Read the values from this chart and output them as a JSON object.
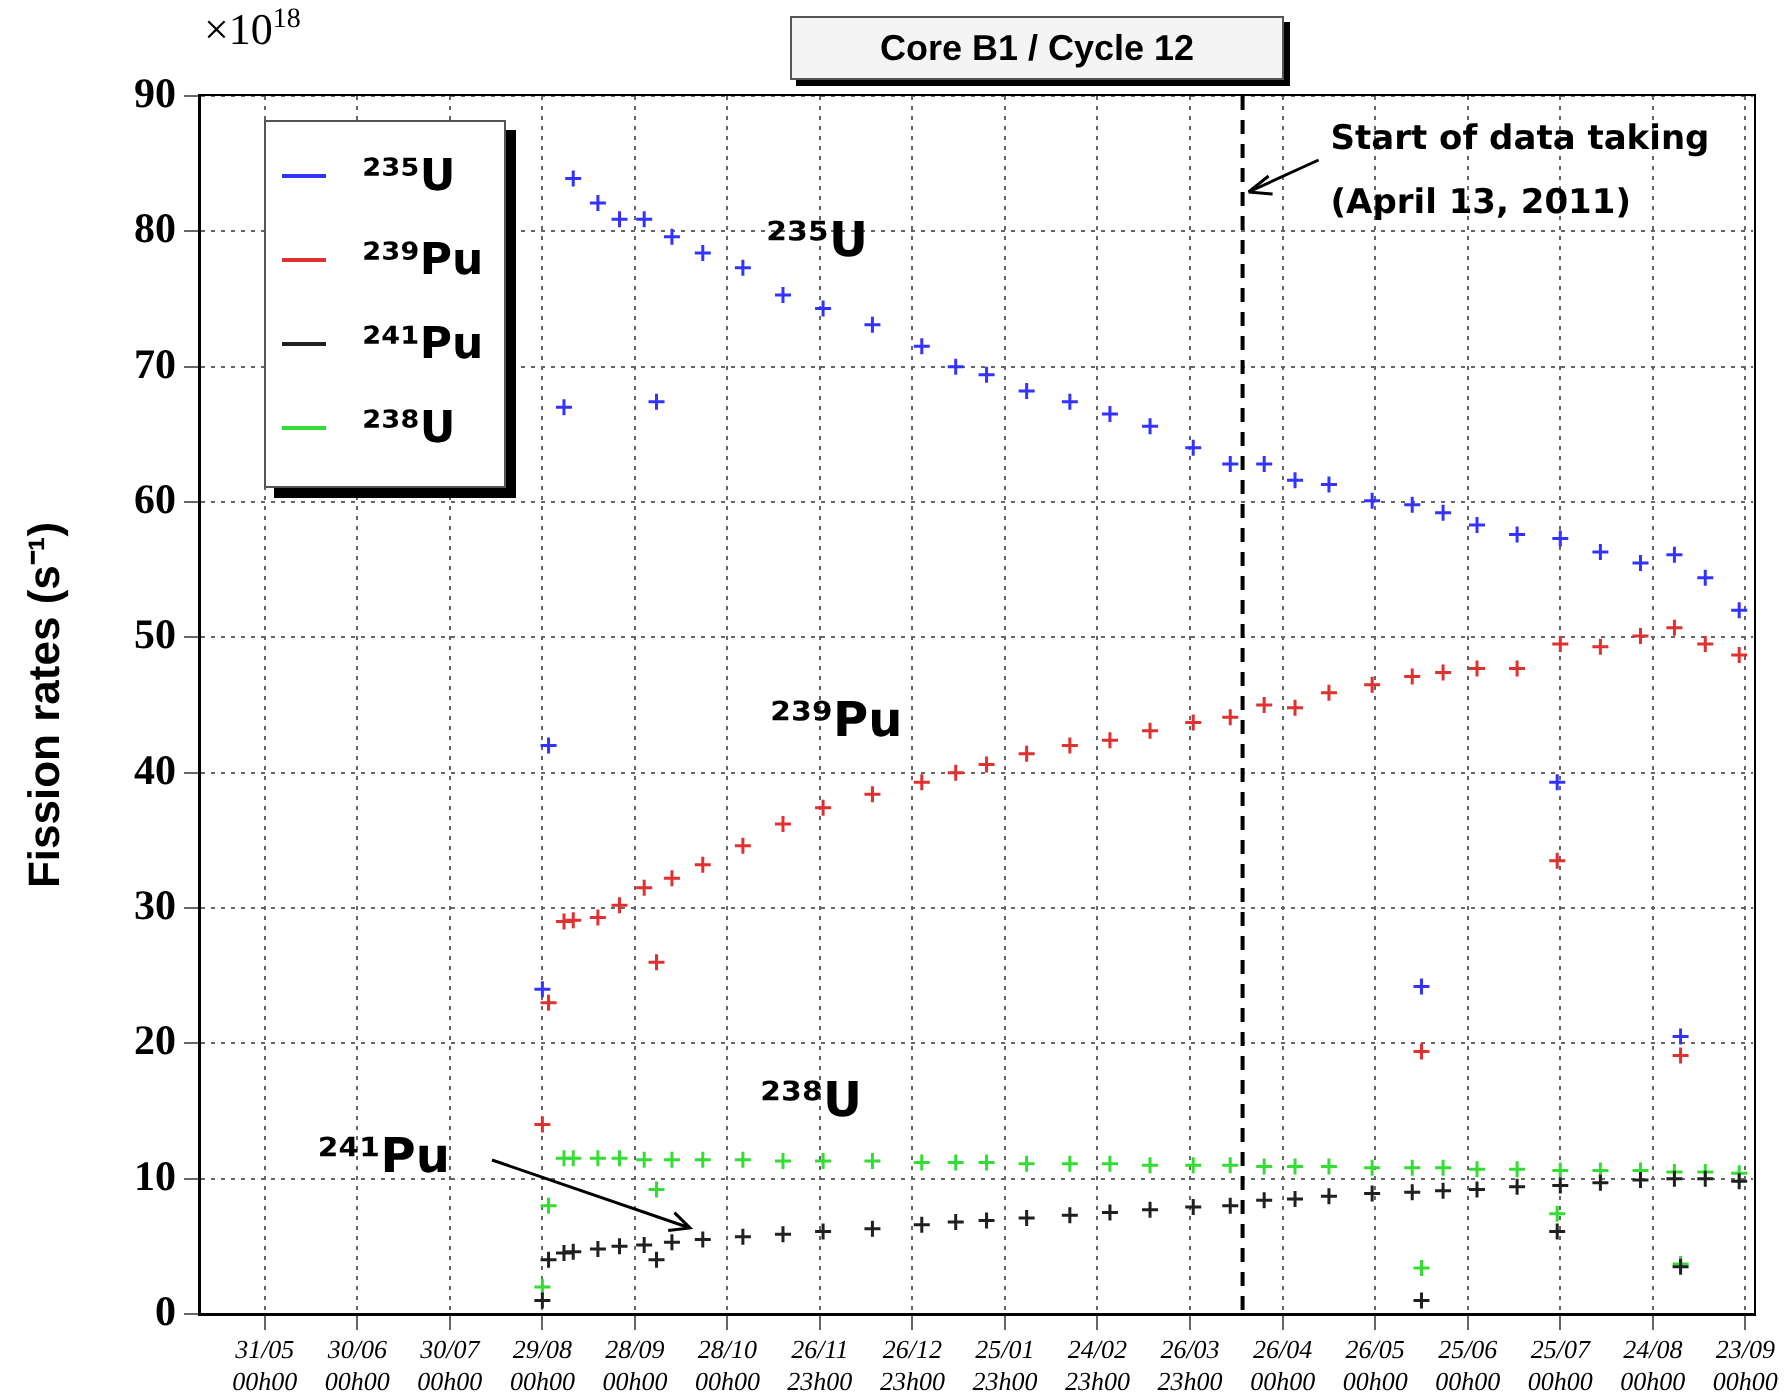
{
  "chart_data": {
    "type": "scatter",
    "title": "Core B1 / Cycle 12",
    "ylabel": "Fission rates (s⁻¹)",
    "annotations": [
      "×10$^{18}$",
      "²³⁵U",
      "²³⁹Pu",
      "²³⁸U",
      {
        "text": "²⁴¹Pu",
        "x": "2010-10-17",
        "y": 6
      }
    ],
    "x": [
      "2010-08-29",
      "2010-08-31",
      "2010-09-05",
      "2010-09-08",
      "2010-09-16",
      "2010-09-23",
      "2010-10-01",
      "2010-10-05",
      "2010-10-10",
      "2010-10-20",
      "2010-11-02",
      "2010-11-15",
      "2010-11-28",
      "2010-12-14",
      "2010-12-30",
      "2011-01-10",
      "2011-01-20",
      "2011-02-02",
      "2011-02-16",
      "2011-03-01",
      "2011-03-14",
      "2011-03-28",
      "2011-04-09",
      "2011-04-20",
      "2011-04-30",
      "2011-05-11",
      "2011-05-25",
      "2011-06-07",
      "2011-06-10",
      "2011-06-17",
      "2011-06-28",
      "2011-07-11",
      "2011-07-24",
      "2011-07-25",
      "2011-08-07",
      "2011-08-20",
      "2011-08-31",
      "2011-09-02",
      "2011-09-10",
      "2011-09-21"
    ],
    "series": [
      {
        "name": "²³⁵U",
        "color": "#3333ff",
        "values": [
          24,
          42,
          67,
          83.9,
          82.1,
          80.9,
          80.9,
          67.4,
          79.6,
          78.4,
          77.3,
          75.3,
          74.3,
          73.1,
          71.5,
          70.0,
          69.4,
          68.2,
          67.4,
          66.5,
          65.6,
          64.0,
          62.8,
          62.8,
          61.6,
          61.3,
          60.1,
          59.8,
          24.2,
          59.2,
          58.3,
          57.6,
          39.3,
          57.3,
          56.3,
          55.5,
          56.1,
          20.5,
          54.4,
          52.0
        ]
      },
      {
        "name": "²³⁹Pu",
        "color": "#e03030",
        "values": [
          14,
          23,
          29,
          29.1,
          29.3,
          30.2,
          31.5,
          26.0,
          32.2,
          33.2,
          34.6,
          36.2,
          37.4,
          38.4,
          39.3,
          40.0,
          40.6,
          41.4,
          42.0,
          42.4,
          43.1,
          43.7,
          44.1,
          45.0,
          44.8,
          45.9,
          46.5,
          47.1,
          19.4,
          47.4,
          47.7,
          47.7,
          33.5,
          49.5,
          49.3,
          50.1,
          50.7,
          19.1,
          49.5,
          48.7
        ]
      },
      {
        "name": "²⁴¹Pu",
        "color": "#202020",
        "values": [
          1,
          4,
          4.5,
          4.6,
          4.8,
          5.0,
          5.1,
          4.0,
          5.3,
          5.5,
          5.7,
          5.9,
          6.1,
          6.3,
          6.6,
          6.8,
          6.9,
          7.1,
          7.3,
          7.5,
          7.7,
          7.9,
          8.0,
          8.4,
          8.5,
          8.7,
          8.9,
          9.0,
          1,
          9.1,
          9.2,
          9.4,
          6.1,
          9.5,
          9.7,
          9.9,
          10.0,
          3.5,
          10.0,
          9.8
        ]
      },
      {
        "name": "²³⁸U",
        "color": "#33dd33",
        "values": [
          2,
          8,
          11.5,
          11.5,
          11.5,
          11.5,
          11.4,
          9.2,
          11.4,
          11.4,
          11.4,
          11.3,
          11.3,
          11.3,
          11.2,
          11.2,
          11.2,
          11.1,
          11.1,
          11.1,
          11.0,
          11.0,
          11.0,
          10.9,
          10.9,
          10.9,
          10.8,
          10.8,
          3.4,
          10.8,
          10.7,
          10.7,
          7.4,
          10.6,
          10.6,
          10.6,
          10.5,
          3.7,
          10.5,
          10.4
        ]
      }
    ],
    "xlim": [
      "2010-05-10",
      "2011-09-25T12:00"
    ],
    "xticks": [
      {
        "value": "2010-05-31T00:00",
        "label": "31/05 00h00"
      },
      {
        "value": "2010-06-30T00:00",
        "label": "30/06 00h00"
      },
      {
        "value": "2010-07-30T00:00",
        "label": "30/07 00h00"
      },
      {
        "value": "2010-08-29T00:00",
        "label": "29/08 00h00"
      },
      {
        "value": "2010-09-28T00:00",
        "label": "28/09 00h00"
      },
      {
        "value": "2010-10-28T00:00",
        "label": "28/10 00h00"
      },
      {
        "value": "2010-11-26T23:00",
        "label": "26/11 23h00"
      },
      {
        "value": "2010-12-26T23:00",
        "label": "26/12 23h00"
      },
      {
        "value": "2011-01-25T23:00",
        "label": "25/01 23h00"
      },
      {
        "value": "2011-02-24T23:00",
        "label": "24/02 23h00"
      },
      {
        "value": "2011-03-26T23:00",
        "label": "26/03 23h00"
      },
      {
        "value": "2011-04-26T00:00",
        "label": "26/04 00h00"
      },
      {
        "value": "2011-05-26T00:00",
        "label": "26/05 00h00"
      },
      {
        "value": "2011-06-25T00:00",
        "label": "25/06 00h00"
      },
      {
        "value": "2011-07-25T00:00",
        "label": "25/07 00h00"
      },
      {
        "value": "2011-08-24T00:00",
        "label": "24/08 00h00"
      },
      {
        "value": "2011-09-23T00:00",
        "label": "23/09 00h00"
      }
    ],
    "ylim": [
      0,
      90
    ],
    "yticks": [
      0,
      10,
      20,
      30,
      40,
      50,
      60,
      70,
      80,
      90
    ],
    "ref_lines": [
      {
        "axis": "x",
        "value": "2011-04-13",
        "label": "Start of data taking (April 13, 2011)",
        "color": "#000000",
        "line_style": "dashed"
      }
    ],
    "grid": true,
    "legend": "top left",
    "marker": "cross"
  }
}
